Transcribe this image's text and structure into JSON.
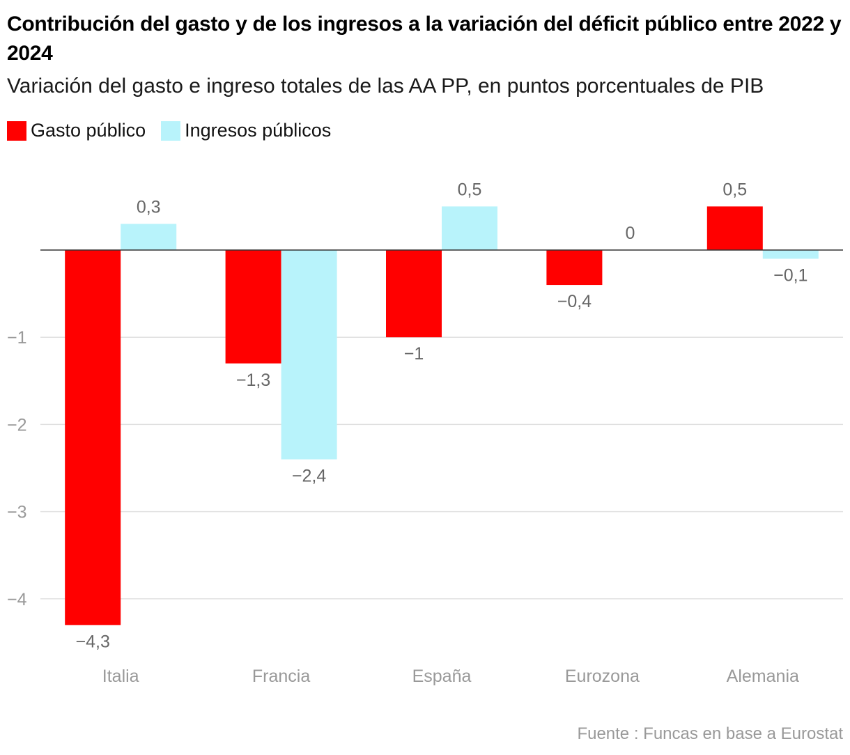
{
  "title": "Contribución del gasto y de los ingresos a la variación del déficit público entre 2022 y 2024",
  "subtitle": "Variación del gasto e ingreso totales de las AA PP, en puntos porcentuales de PIB",
  "source": "Fuente : Funcas en base a Eurostat",
  "colors": {
    "gasto": "#ff0000",
    "ingresos": "#b8f3fb",
    "grid": "#e0e0e0",
    "axis": "#333333"
  },
  "chart_data": {
    "type": "bar",
    "title": "Contribución del gasto y de los ingresos a la variación del déficit público entre 2022 y 2024",
    "subtitle": "Variación del gasto e ingreso totales de las AA PP, en puntos porcentuales de PIB",
    "xlabel": "",
    "ylabel": "",
    "ylim": [
      -4.5,
      0.8
    ],
    "yticks": [
      -4,
      -3,
      -2,
      -1
    ],
    "ytick_labels": [
      "−4",
      "−3",
      "−2",
      "−1"
    ],
    "legend_position": "top-left",
    "categories": [
      "Italia",
      "Francia",
      "España",
      "Eurozona",
      "Alemania"
    ],
    "series": [
      {
        "name": "Gasto público",
        "values": [
          -4.3,
          -1.3,
          -1,
          -0.4,
          0.5
        ],
        "labels": [
          "−4,3",
          "−1,3",
          "−1",
          "−0,4",
          "0,5"
        ]
      },
      {
        "name": "Ingresos públicos",
        "values": [
          0.3,
          -2.4,
          0.5,
          0,
          -0.1
        ],
        "labels": [
          "0,3",
          "−2,4",
          "0,5",
          "0",
          "−0,1"
        ]
      }
    ]
  }
}
